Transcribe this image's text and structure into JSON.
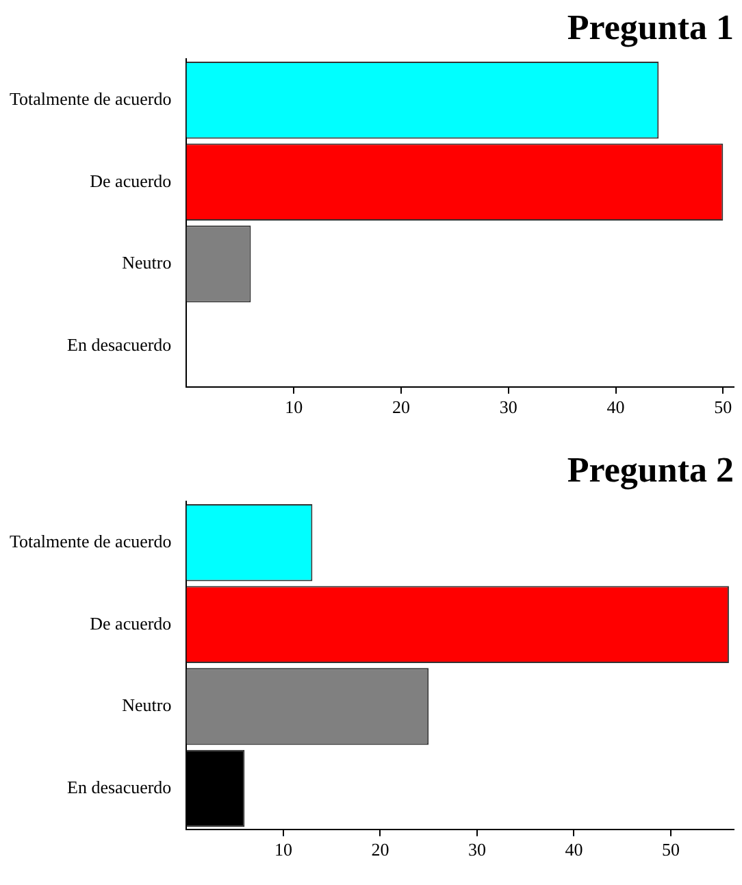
{
  "chart_data": [
    {
      "type": "bar",
      "orientation": "horizontal",
      "title": "Pregunta 1",
      "categories": [
        "Totalmente de acuerdo",
        "De acuerdo",
        "Neutro",
        "En desacuerdo"
      ],
      "values": [
        44,
        50,
        6,
        0
      ],
      "colors": [
        "#00ffff",
        "#ff0000",
        "#808080",
        "#000000"
      ],
      "xlim": [
        0,
        51
      ],
      "xticks": [
        10,
        20,
        30,
        40,
        50
      ],
      "grid": false,
      "legend": false
    },
    {
      "type": "bar",
      "orientation": "horizontal",
      "title": "Pregunta 2",
      "categories": [
        "Totalmente de acuerdo",
        "De acuerdo",
        "Neutro",
        "En desacuerdo"
      ],
      "values": [
        13,
        56,
        25,
        6
      ],
      "colors": [
        "#00ffff",
        "#ff0000",
        "#808080",
        "#000000"
      ],
      "xlim": [
        0,
        56.5
      ],
      "xticks": [
        10,
        20,
        30,
        40,
        50
      ],
      "grid": false,
      "legend": false
    }
  ]
}
